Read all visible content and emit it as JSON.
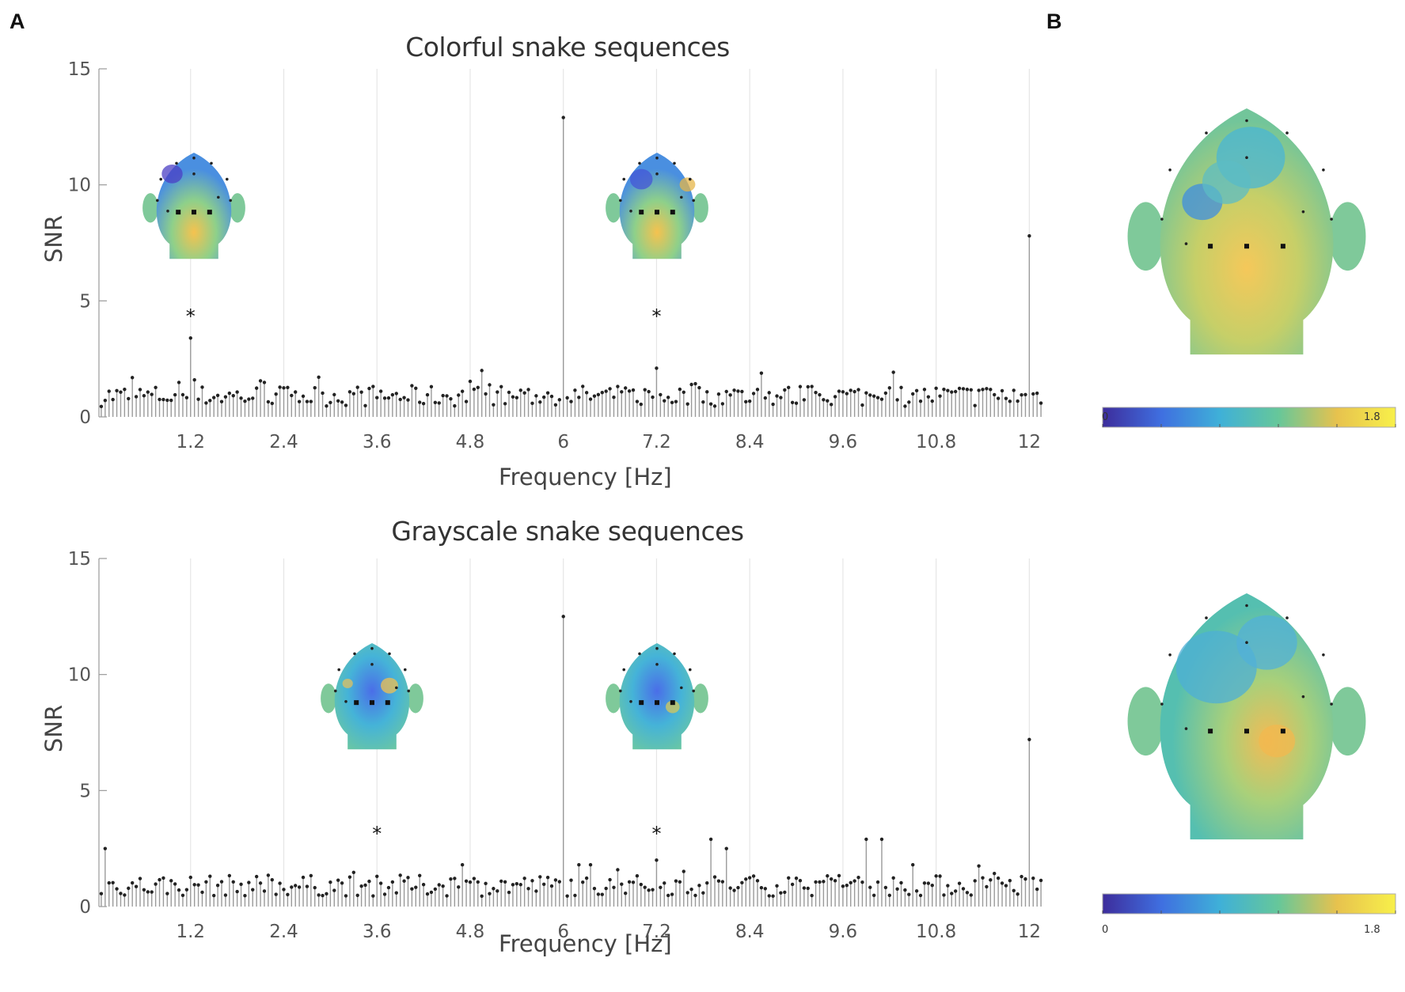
{
  "panels": {
    "a_label": "A",
    "b_label": "B"
  },
  "colorbar": {
    "min_label": "0",
    "max_label": "1.8",
    "min": 0,
    "max": 1.8
  },
  "chart_data": [
    {
      "type": "bar",
      "title": "Colorful snake sequences",
      "xlabel": "Frequency [Hz]",
      "ylabel": "SNR",
      "xlim": [
        0.02,
        12.2
      ],
      "ylim": [
        0,
        15
      ],
      "xticks": [
        "1.2",
        "2.4",
        "3.6",
        "4.8",
        "6",
        "7.2",
        "8.4",
        "9.6",
        "10.8",
        "12"
      ],
      "yticks": [
        "0",
        "5",
        "10",
        "15"
      ],
      "grid": "vertical",
      "significance_markers": [
        {
          "x": 1.2,
          "label": "*"
        },
        {
          "x": 7.2,
          "label": "*"
        }
      ],
      "peaks": [
        {
          "x": 1.2,
          "y": 3.4
        },
        {
          "x": 6.0,
          "y": 12.9
        },
        {
          "x": 7.2,
          "y": 2.1
        },
        {
          "x": 12.0,
          "y": 7.8
        }
      ],
      "background_noise": {
        "mean": 0.9,
        "range": [
          0.3,
          2.6
        ]
      }
    },
    {
      "type": "bar",
      "title": "Grayscale snake sequences",
      "xlabel": "Frequency [Hz]",
      "ylabel": "SNR",
      "xlim": [
        0.02,
        12.2
      ],
      "ylim": [
        0,
        15
      ],
      "xticks": [
        "1.2",
        "2.4",
        "3.6",
        "4.8",
        "6",
        "7.2",
        "8.4",
        "9.6",
        "10.8",
        "12"
      ],
      "yticks": [
        "0",
        "5",
        "10",
        "15"
      ],
      "grid": "vertical",
      "significance_markers": [
        {
          "x": 3.6,
          "label": "*"
        },
        {
          "x": 7.2,
          "label": "*"
        }
      ],
      "peaks": [
        {
          "x": 0.1,
          "y": 2.5
        },
        {
          "x": 3.6,
          "y": 1.3
        },
        {
          "x": 6.0,
          "y": 12.5
        },
        {
          "x": 7.2,
          "y": 2.0
        },
        {
          "x": 7.9,
          "y": 2.9
        },
        {
          "x": 8.1,
          "y": 2.5
        },
        {
          "x": 9.9,
          "y": 2.9
        },
        {
          "x": 10.1,
          "y": 2.9
        },
        {
          "x": 12.0,
          "y": 7.2
        }
      ],
      "background_noise": {
        "mean": 0.9,
        "range": [
          0.2,
          2.0
        ]
      }
    }
  ]
}
